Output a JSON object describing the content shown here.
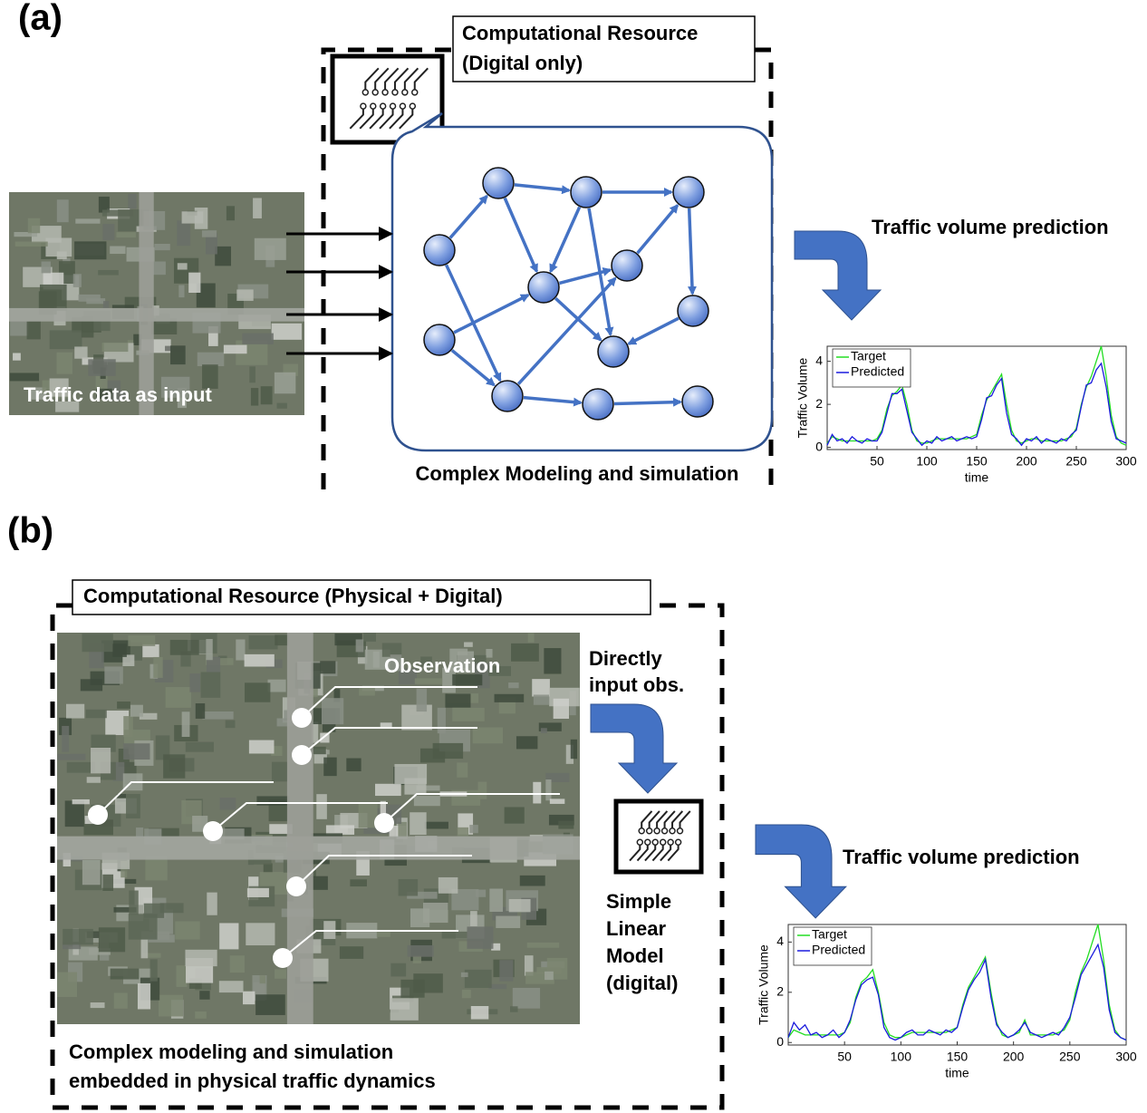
{
  "panel_a": {
    "label": "(a)",
    "resource_title": [
      "Computational Resource",
      "(Digital only)"
    ],
    "input_label": "Traffic data as input",
    "model_caption": "Complex Modeling and simulation",
    "output_label": "Traffic volume prediction",
    "chart": {
      "type": "line",
      "xlabel": "time",
      "ylabel": "Traffic Volume",
      "xlim": [
        0,
        300
      ],
      "ylim": [
        -0.1,
        4.7
      ],
      "xticks": [
        50,
        100,
        150,
        200,
        250,
        300
      ],
      "yticks": [
        0,
        2,
        4
      ],
      "x": [
        0,
        5,
        10,
        15,
        20,
        25,
        30,
        35,
        40,
        45,
        50,
        55,
        60,
        65,
        70,
        75,
        80,
        85,
        90,
        95,
        100,
        105,
        110,
        115,
        120,
        125,
        130,
        135,
        140,
        145,
        150,
        155,
        160,
        165,
        170,
        175,
        180,
        185,
        190,
        195,
        200,
        205,
        210,
        215,
        220,
        225,
        230,
        235,
        240,
        245,
        250,
        255,
        260,
        265,
        270,
        275,
        280,
        285,
        290,
        295,
        300
      ],
      "series": [
        {
          "name": "Target",
          "color": "#22dd22",
          "values": [
            0.2,
            0.5,
            0.4,
            0.3,
            0.3,
            0.3,
            0.3,
            0.3,
            0.3,
            0.3,
            0.4,
            0.8,
            1.8,
            2.4,
            2.6,
            2.9,
            2.0,
            0.8,
            0.3,
            0.2,
            0.2,
            0.3,
            0.4,
            0.4,
            0.4,
            0.4,
            0.4,
            0.4,
            0.4,
            0.5,
            0.6,
            1.5,
            2.2,
            2.6,
            3.0,
            3.4,
            2.0,
            0.8,
            0.3,
            0.2,
            0.3,
            0.4,
            0.4,
            0.3,
            0.3,
            0.3,
            0.3,
            0.3,
            0.4,
            0.5,
            0.9,
            2.0,
            2.8,
            3.3,
            4.0,
            4.7,
            3.3,
            1.5,
            0.5,
            0.2,
            0.1
          ]
        },
        {
          "name": "Predicted",
          "color": "#1a1add",
          "values": [
            0.1,
            0.6,
            0.3,
            0.4,
            0.2,
            0.5,
            0.3,
            0.2,
            0.4,
            0.3,
            0.3,
            0.7,
            1.6,
            2.5,
            2.5,
            2.7,
            1.7,
            0.7,
            0.4,
            0.1,
            0.3,
            0.2,
            0.5,
            0.3,
            0.4,
            0.5,
            0.3,
            0.4,
            0.5,
            0.4,
            0.5,
            1.3,
            2.3,
            2.4,
            2.9,
            3.2,
            1.6,
            0.6,
            0.4,
            0.1,
            0.4,
            0.3,
            0.5,
            0.2,
            0.4,
            0.3,
            0.2,
            0.4,
            0.3,
            0.6,
            0.8,
            1.9,
            2.9,
            3.0,
            3.6,
            3.9,
            2.8,
            1.2,
            0.4,
            0.3,
            0.2
          ]
        }
      ]
    }
  },
  "panel_b": {
    "label": "(b)",
    "resource_title": "Computational Resource (Physical + Digital)",
    "observation_label": "Observation",
    "direct_label": [
      "Directly",
      "input obs."
    ],
    "model_label": [
      "Simple",
      "Linear",
      "Model",
      "(digital)"
    ],
    "caption": [
      "Complex modeling and simulation",
      "embedded in physical traffic dynamics"
    ],
    "output_label": "Traffic volume prediction",
    "chart": {
      "type": "line",
      "xlabel": "time",
      "ylabel": "Traffic Volume",
      "xlim": [
        0,
        300
      ],
      "ylim": [
        -0.1,
        4.7
      ],
      "xticks": [
        50,
        100,
        150,
        200,
        250,
        300
      ],
      "yticks": [
        0,
        2,
        4
      ],
      "x": [
        0,
        5,
        10,
        15,
        20,
        25,
        30,
        35,
        40,
        45,
        50,
        55,
        60,
        65,
        70,
        75,
        80,
        85,
        90,
        95,
        100,
        105,
        110,
        115,
        120,
        125,
        130,
        135,
        140,
        145,
        150,
        155,
        160,
        165,
        170,
        175,
        180,
        185,
        190,
        195,
        200,
        205,
        210,
        215,
        220,
        225,
        230,
        235,
        240,
        245,
        250,
        255,
        260,
        265,
        270,
        275,
        280,
        285,
        290,
        295,
        300
      ],
      "series": [
        {
          "name": "Target",
          "color": "#22dd22",
          "values": [
            0.2,
            0.5,
            0.4,
            0.3,
            0.3,
            0.3,
            0.3,
            0.3,
            0.3,
            0.3,
            0.4,
            0.8,
            1.8,
            2.4,
            2.6,
            2.9,
            2.0,
            0.8,
            0.3,
            0.2,
            0.2,
            0.3,
            0.4,
            0.4,
            0.4,
            0.4,
            0.4,
            0.4,
            0.4,
            0.5,
            0.6,
            1.5,
            2.2,
            2.6,
            3.0,
            3.4,
            2.0,
            0.8,
            0.3,
            0.2,
            0.3,
            0.4,
            0.9,
            0.3,
            0.3,
            0.3,
            0.3,
            0.3,
            0.4,
            0.5,
            0.9,
            2.0,
            2.8,
            3.3,
            4.0,
            4.7,
            3.3,
            1.5,
            0.5,
            0.2,
            0.1
          ]
        },
        {
          "name": "Predicted",
          "color": "#1a1add",
          "values": [
            0.2,
            0.8,
            0.5,
            0.7,
            0.3,
            0.4,
            0.2,
            0.3,
            0.5,
            0.2,
            0.4,
            0.9,
            1.7,
            2.3,
            2.5,
            2.6,
            1.9,
            0.6,
            0.2,
            0.1,
            0.2,
            0.4,
            0.5,
            0.3,
            0.3,
            0.5,
            0.4,
            0.3,
            0.5,
            0.4,
            0.6,
            1.4,
            2.1,
            2.5,
            2.8,
            3.3,
            1.8,
            0.7,
            0.4,
            0.2,
            0.3,
            0.5,
            0.8,
            0.4,
            0.3,
            0.2,
            0.3,
            0.4,
            0.3,
            0.6,
            1.0,
            1.8,
            2.7,
            3.1,
            3.5,
            3.9,
            3.0,
            1.3,
            0.4,
            0.2,
            0.1
          ]
        }
      ]
    }
  }
}
